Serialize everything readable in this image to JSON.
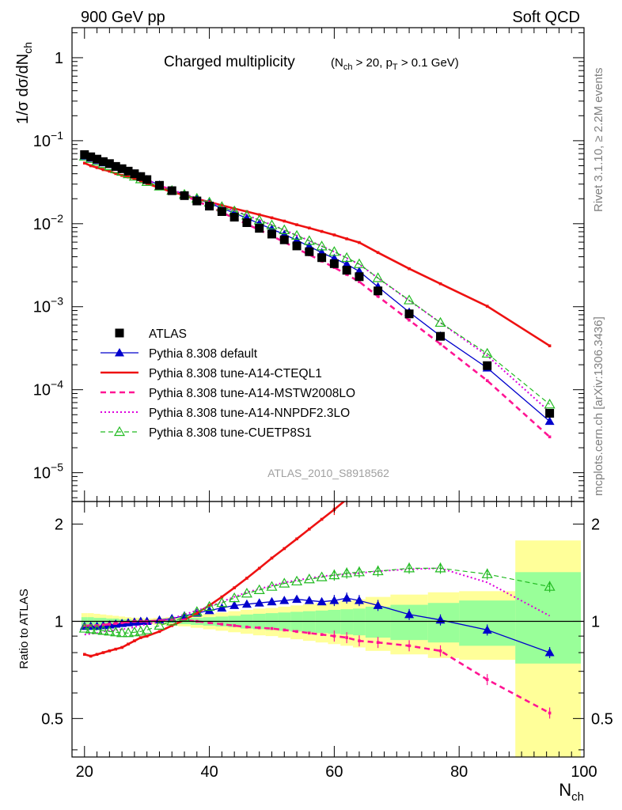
{
  "header": {
    "left": "900 GeV pp",
    "right": "Soft QCD"
  },
  "side_labels": {
    "rivet": "Rivet 3.1.10, ≥ 2.2M events",
    "mcplots": "mcplots.cern.ch [arXiv:1306.3436]"
  },
  "chart_data": [
    {
      "type": "scatter",
      "title": "Charged multiplicity",
      "subtitle_parts": [
        "(N",
        "ch",
        " > 20, p",
        "T",
        " > 0.1 GeV)"
      ],
      "ylabel_parts": [
        "1/σ dσ/dN",
        "ch"
      ],
      "analysis": "ATLAS_2010_S8918562",
      "yscale": "log",
      "xlim": [
        18,
        100
      ],
      "ylim": [
        4.5e-06,
        2.3
      ],
      "ytick_values": [
        1e-05,
        0.0001,
        0.001,
        0.01,
        0.1,
        1
      ],
      "ytick_labels": [
        {
          "base": "10",
          "exp": "−5"
        },
        {
          "base": "10",
          "exp": "−4"
        },
        {
          "base": "10",
          "exp": "−3"
        },
        {
          "base": "10",
          "exp": "−2"
        },
        {
          "base": "10",
          "exp": "−1"
        },
        {
          "base": "1",
          "exp": ""
        }
      ],
      "legend_position": "bottom-left",
      "data": {
        "x": [
          20,
          21,
          22,
          23,
          24,
          25,
          26,
          27,
          28,
          29,
          30,
          32,
          34,
          36,
          38,
          40,
          42,
          44,
          46,
          48,
          50,
          52,
          54,
          56,
          58,
          60,
          62,
          64,
          67,
          72,
          77,
          84.5,
          94.5
        ],
        "y": [
          0.068,
          0.064,
          0.06,
          0.056,
          0.053,
          0.049,
          0.046,
          0.043,
          0.04,
          0.037,
          0.034,
          0.029,
          0.025,
          0.0218,
          0.0188,
          0.0163,
          0.014,
          0.012,
          0.0103,
          0.0088,
          0.0075,
          0.0064,
          0.0054,
          0.0046,
          0.0039,
          0.0033,
          0.00275,
          0.0023,
          0.00155,
          0.00082,
          0.00044,
          0.000195,
          5.2e-05
        ]
      },
      "series": [
        {
          "name": "ATLAS",
          "color": "#000000",
          "style": "data",
          "marker": "square"
        },
        {
          "name": "Pythia 8.308 default",
          "color": "#0000cc",
          "style": "solid",
          "marker": "triangle-filled",
          "width": 1.3,
          "ratio": [
            0.965,
            0.965,
            0.965,
            0.97,
            0.975,
            0.98,
            0.985,
            0.99,
            0.995,
            1.0,
            1.0,
            1.01,
            1.02,
            1.04,
            1.06,
            1.08,
            1.1,
            1.12,
            1.13,
            1.14,
            1.15,
            1.16,
            1.17,
            1.16,
            1.15,
            1.16,
            1.18,
            1.16,
            1.12,
            1.05,
            1.01,
            0.94,
            0.8
          ]
        },
        {
          "name": "Pythia 8.308 tune-A14-CTEQL1",
          "color": "#ee1111",
          "style": "solid",
          "marker": "dot",
          "width": 2.6,
          "ratio": [
            0.79,
            0.78,
            0.79,
            0.8,
            0.81,
            0.82,
            0.83,
            0.85,
            0.87,
            0.89,
            0.9,
            0.93,
            0.97,
            1.01,
            1.06,
            1.12,
            1.19,
            1.27,
            1.36,
            1.46,
            1.57,
            1.68,
            1.8,
            1.93,
            2.07,
            2.22,
            2.39,
            2.58,
            2.9,
            3.5,
            4.3,
            5.2,
            6.5
          ]
        },
        {
          "name": "Pythia 8.308 tune-A14-MSTW2008LO",
          "color": "#ff1493",
          "style": "dashed",
          "marker": "dot",
          "width": 2.6,
          "ratio": [
            0.97,
            0.97,
            0.97,
            0.975,
            0.98,
            0.985,
            0.99,
            0.995,
            1.0,
            1.0,
            1.0,
            1.005,
            1.01,
            1.01,
            1.0,
            0.99,
            0.98,
            0.97,
            0.96,
            0.955,
            0.95,
            0.94,
            0.93,
            0.92,
            0.91,
            0.9,
            0.89,
            0.87,
            0.86,
            0.84,
            0.81,
            0.66,
            0.52
          ]
        },
        {
          "name": "Pythia 8.308 tune-A14-NNPDF2.3LO",
          "color": "#dd00dd",
          "style": "dotted",
          "marker": "none",
          "width": 2.0,
          "ratio": [
            0.91,
            0.915,
            0.92,
            0.93,
            0.935,
            0.94,
            0.945,
            0.95,
            0.96,
            0.97,
            0.98,
            1.0,
            1.02,
            1.05,
            1.08,
            1.11,
            1.15,
            1.19,
            1.23,
            1.26,
            1.29,
            1.32,
            1.34,
            1.36,
            1.38,
            1.39,
            1.4,
            1.41,
            1.43,
            1.45,
            1.46,
            1.32,
            1.04
          ]
        },
        {
          "name": "Pythia 8.308 tune-CUETP8S1",
          "color": "#22bb22",
          "style": "dashed-thin",
          "marker": "triangle-open",
          "width": 1.2,
          "ratio": [
            0.95,
            0.945,
            0.94,
            0.935,
            0.93,
            0.925,
            0.92,
            0.92,
            0.925,
            0.93,
            0.94,
            0.97,
            1.0,
            1.03,
            1.07,
            1.11,
            1.14,
            1.18,
            1.22,
            1.25,
            1.28,
            1.31,
            1.33,
            1.35,
            1.37,
            1.39,
            1.41,
            1.42,
            1.43,
            1.46,
            1.46,
            1.4,
            1.28
          ]
        }
      ]
    },
    {
      "type": "scatter",
      "ylabel": "Ratio to ATLAS",
      "xlabel_parts": [
        "N",
        "ch"
      ],
      "xlim": [
        18,
        100
      ],
      "ylim": [
        0.38,
        2.35
      ],
      "xtick_labels": [
        "20",
        "40",
        "60",
        "80",
        "100"
      ],
      "xtick_values": [
        20,
        40,
        60,
        80,
        100
      ],
      "ytick_labels": [
        "0.5",
        "1",
        "2"
      ],
      "ytick_values": [
        0.5,
        1,
        2
      ],
      "reference_line": 1,
      "uncertainty_bands": {
        "x_edges": [
          19.5,
          20.5,
          21.5,
          22.5,
          23.5,
          24.5,
          25.5,
          26.5,
          27.5,
          28.5,
          29.5,
          31,
          33,
          35,
          37,
          39,
          41,
          43,
          45,
          47,
          49,
          51,
          53,
          55,
          57,
          59,
          61,
          63,
          65,
          69,
          75,
          80,
          89,
          99.5
        ],
        "stat_syst_inner": [
          0.97,
          0.97,
          0.975,
          0.975,
          0.98,
          0.98,
          0.985,
          0.985,
          0.99,
          0.99,
          0.99,
          0.99,
          0.985,
          0.98,
          0.975,
          0.97,
          0.965,
          0.96,
          0.95,
          0.945,
          0.94,
          0.935,
          0.93,
          0.925,
          0.92,
          0.915,
          0.91,
          0.905,
          0.89,
          0.875,
          0.86,
          0.84,
          0.74
        ],
        "stat_syst_inner_upper": [
          1.03,
          1.03,
          1.025,
          1.025,
          1.02,
          1.02,
          1.015,
          1.015,
          1.01,
          1.01,
          1.01,
          1.01,
          1.015,
          1.02,
          1.025,
          1.03,
          1.035,
          1.04,
          1.05,
          1.055,
          1.06,
          1.065,
          1.07,
          1.075,
          1.08,
          1.085,
          1.09,
          1.095,
          1.11,
          1.125,
          1.14,
          1.16,
          1.42
        ],
        "total_lower": [
          0.94,
          0.94,
          0.945,
          0.95,
          0.955,
          0.96,
          0.965,
          0.97,
          0.975,
          0.975,
          0.98,
          0.975,
          0.97,
          0.965,
          0.955,
          0.945,
          0.935,
          0.925,
          0.915,
          0.905,
          0.9,
          0.89,
          0.88,
          0.87,
          0.86,
          0.85,
          0.84,
          0.83,
          0.81,
          0.79,
          0.77,
          0.76,
          0.38
        ],
        "total_upper": [
          1.06,
          1.06,
          1.055,
          1.05,
          1.045,
          1.04,
          1.035,
          1.03,
          1.025,
          1.025,
          1.02,
          1.025,
          1.03,
          1.035,
          1.045,
          1.055,
          1.065,
          1.075,
          1.085,
          1.095,
          1.1,
          1.11,
          1.12,
          1.13,
          1.14,
          1.15,
          1.16,
          1.17,
          1.19,
          1.21,
          1.23,
          1.24,
          1.78
        ]
      }
    }
  ]
}
